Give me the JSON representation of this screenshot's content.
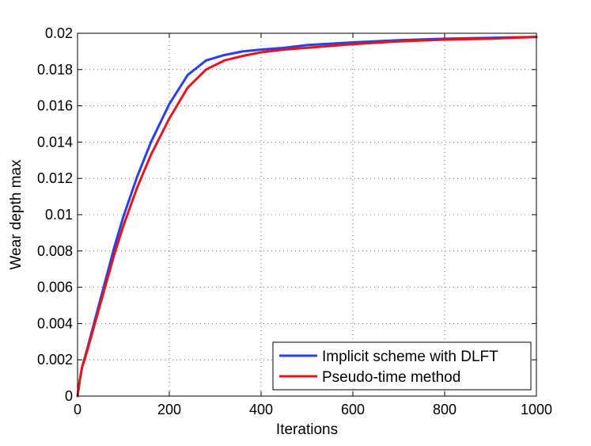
{
  "chart_data": {
    "type": "line",
    "xlabel": "Iterations",
    "ylabel": "Wear depth max",
    "xlim": [
      0,
      1000
    ],
    "ylim": [
      0,
      0.02
    ],
    "xticks": [
      0,
      200,
      400,
      600,
      800,
      1000
    ],
    "yticks": [
      0,
      0.002,
      0.004,
      0.006,
      0.008,
      0.01,
      0.012,
      0.014,
      0.016,
      0.018,
      0.02
    ],
    "xtick_labels": [
      "0",
      "200",
      "400",
      "600",
      "800",
      "1000"
    ],
    "ytick_labels": [
      "0",
      "0.002",
      "0.004",
      "0.006",
      "0.008",
      "0.01",
      "0.012",
      "0.014",
      "0.016",
      "0.018",
      "0.02"
    ],
    "grid": true,
    "legend_position": "bottom-right",
    "series": [
      {
        "name": "Implicit scheme with DLFT",
        "color": "#2a3fe8",
        "x": [
          0,
          5,
          10,
          20,
          40,
          60,
          80,
          100,
          130,
          160,
          200,
          240,
          280,
          320,
          360,
          400,
          450,
          500,
          600,
          700,
          800,
          900,
          1000
        ],
        "y": [
          0,
          0.0009,
          0.0016,
          0.0025,
          0.0044,
          0.0063,
          0.0082,
          0.0099,
          0.0121,
          0.014,
          0.0161,
          0.0177,
          0.0185,
          0.0188,
          0.019,
          0.0191,
          0.0192,
          0.01935,
          0.0195,
          0.01962,
          0.0197,
          0.01975,
          0.0198
        ]
      },
      {
        "name": "Pseudo-time method",
        "color": "#e8141c",
        "x": [
          0,
          5,
          10,
          20,
          40,
          60,
          80,
          100,
          130,
          160,
          200,
          240,
          280,
          320,
          360,
          400,
          450,
          500,
          600,
          700,
          800,
          900,
          1000
        ],
        "y": [
          0,
          0.0009,
          0.0016,
          0.0024,
          0.0042,
          0.006,
          0.0078,
          0.0094,
          0.0115,
          0.0133,
          0.0153,
          0.017,
          0.018,
          0.0185,
          0.01875,
          0.01895,
          0.0191,
          0.0192,
          0.0194,
          0.01955,
          0.01965,
          0.0197,
          0.0198
        ]
      }
    ]
  }
}
